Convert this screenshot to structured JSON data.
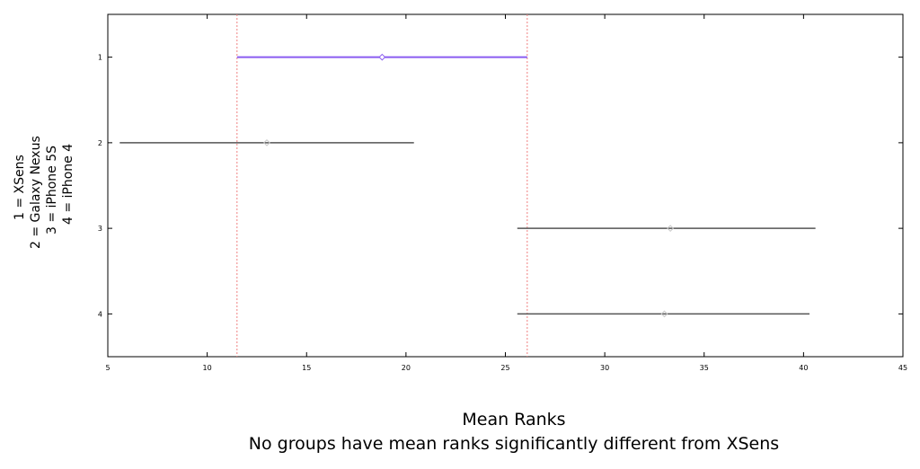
{
  "chart_data": {
    "type": "interval",
    "xlabel": "Mean Ranks",
    "subtitle": "No groups have mean ranks significantly different from XSens",
    "ylabel_lines": [
      "1 = XSens",
      "2 = Galaxy Nexus",
      "3 = iPhone 5S",
      "4 = iPhone 4"
    ],
    "xlim": [
      5,
      45
    ],
    "xticks": [
      5,
      10,
      15,
      20,
      25,
      30,
      35,
      40,
      45
    ],
    "ylim": [
      0.5,
      4.5
    ],
    "yticks": [
      1,
      2,
      3,
      4
    ],
    "groups": [
      {
        "group": 1,
        "low": 11.5,
        "mean": 18.8,
        "high": 26.1,
        "highlight": true
      },
      {
        "group": 2,
        "low": 5.6,
        "mean": 13.0,
        "high": 20.4,
        "highlight": false
      },
      {
        "group": 3,
        "low": 25.6,
        "mean": 33.3,
        "high": 40.6,
        "highlight": false
      },
      {
        "group": 4,
        "low": 25.6,
        "mean": 33.0,
        "high": 40.3,
        "highlight": false
      }
    ],
    "reference_lines": [
      11.5,
      26.1
    ],
    "colors": {
      "highlight": "#8a5cf0",
      "normal": "#555555",
      "reference": "#f08080",
      "axis": "#000000"
    }
  }
}
